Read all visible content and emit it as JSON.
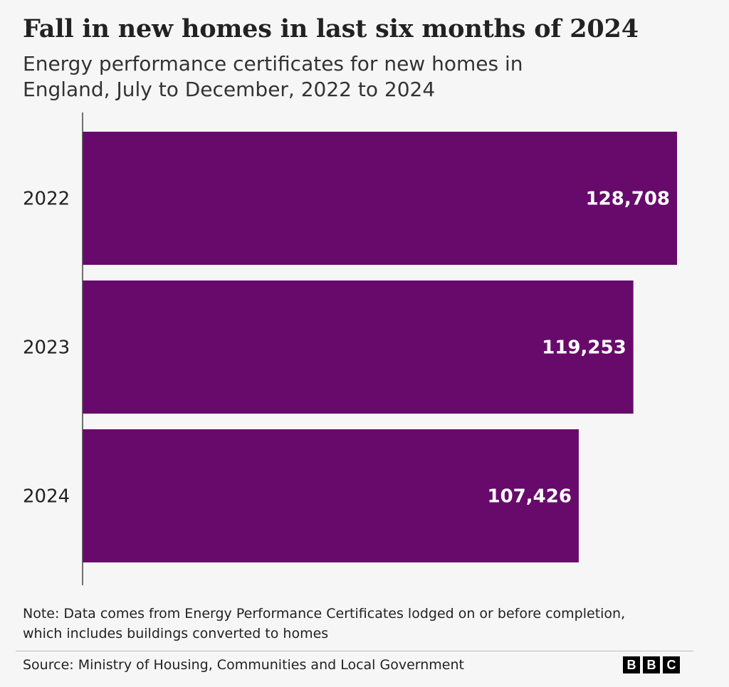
{
  "chart_data": {
    "type": "bar",
    "orientation": "horizontal",
    "title": "Fall in new homes in last six months of 2024",
    "subtitle": "Energy performance certificates for new homes in England, July to December, 2022 to 2024",
    "categories": [
      "2022",
      "2023",
      "2024"
    ],
    "values": [
      128708,
      119253,
      107426
    ],
    "value_labels": [
      "128,708",
      "119,253",
      "107,426"
    ],
    "xlim": [
      0,
      128708
    ],
    "xlabel": "",
    "ylabel": "",
    "grid": false,
    "legend": "none",
    "bar_color": "#680a6b",
    "note": "Note: Data comes from Energy Performance Certificates lodged on or before completion, which includes buildings converted to homes",
    "source": "Source: Ministry of Housing, Communities and Local Government"
  },
  "branding": {
    "logo_letters": [
      "B",
      "B",
      "C"
    ]
  }
}
